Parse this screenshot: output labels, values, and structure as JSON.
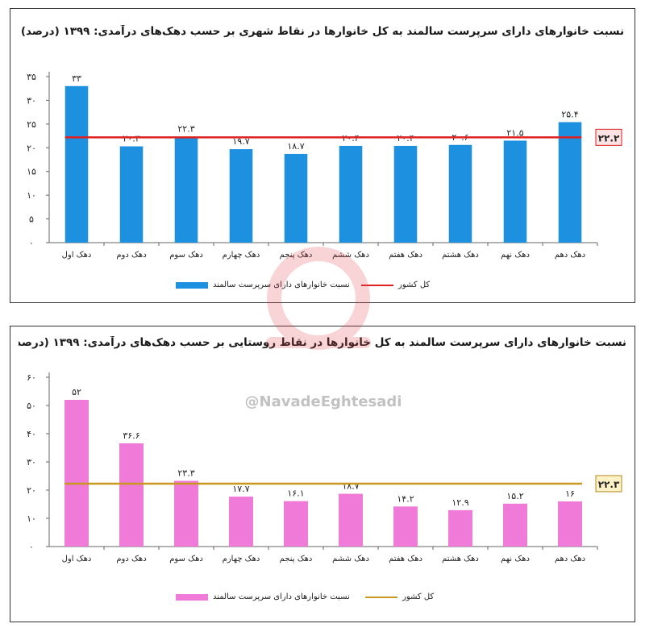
{
  "watermark": {
    "handle": "@NavadeEghtesadi"
  },
  "chart_data": [
    {
      "type": "bar",
      "title": "نسبت خانوارهای دارای سرپرست سالمند به کل خانوارها در نقاط شهری بر حسب دهک‌های درآمدی: ۱۳۹۹ (درصد)",
      "categories": [
        "دهک اول",
        "دهک دوم",
        "دهک سوم",
        "دهک چهارم",
        "دهک پنجم",
        "دهک ششم",
        "دهک هفتم",
        "دهک هشتم",
        "دهک نهم",
        "دهک دهم"
      ],
      "series": [
        {
          "name": "نسبت خانوارهای دارای سرپرست سالمند",
          "values": [
            33,
            20.3,
            22.3,
            19.7,
            18.7,
            20.4,
            20.4,
            20.6,
            21.5,
            25.4
          ],
          "labels": [
            "۳۳",
            "۲۰.۳",
            "۲۲.۳",
            "۱۹.۷",
            "۱۸.۷",
            "۲۰.۴",
            "۲۰.۴",
            "۲۰.۶",
            "۲۱.۵",
            "۲۵.۴"
          ],
          "color": "#1e90e0"
        }
      ],
      "reference_line": {
        "name": "کل کشور",
        "value": 22.2,
        "label": "۲۲.۲",
        "color": "#e02020",
        "label_bg": "#fde3e3",
        "label_border": "#e02020"
      },
      "ylim": [
        0,
        35
      ],
      "yticks": [
        "۰",
        "۵",
        "۱۰",
        "۱۵",
        "۲۰",
        "۲۵",
        "۳۰",
        "۳۵"
      ],
      "ytick_values": [
        0,
        5,
        10,
        15,
        20,
        25,
        30,
        35
      ],
      "grid": false,
      "legend": "bottom"
    },
    {
      "type": "bar",
      "title": "نسبت خانوارهای دارای سرپرست سالمند به کل خانوارها در نقاط روستایی بر حسب دهک‌های درآمدی: ۱۳۹۹ (درصد)",
      "categories": [
        "دهک اول",
        "دهک دوم",
        "دهک سوم",
        "دهک چهارم",
        "دهک پنجم",
        "دهک ششم",
        "دهک هفتم",
        "دهک هشتم",
        "دهک نهم",
        "دهک دهم"
      ],
      "series": [
        {
          "name": "نسبت خانوارهای دارای سرپرست سالمند",
          "values": [
            52,
            36.6,
            23.3,
            17.7,
            16.1,
            18.7,
            14.2,
            12.9,
            15.2,
            16
          ],
          "labels": [
            "۵۲",
            "۳۶.۶",
            "۲۳.۳",
            "۱۷.۷",
            "۱۶.۱",
            "۱۸.۷",
            "۱۴.۲",
            "۱۲.۹",
            "۱۵.۲",
            "۱۶"
          ],
          "color": "#f07ad8"
        }
      ],
      "reference_line": {
        "name": "کل کشور",
        "value": 22.3,
        "label": "۲۲.۳",
        "color": "#c9961e",
        "label_bg": "#fdf1c6",
        "label_border": "#b38a1e"
      },
      "ylim": [
        0,
        60
      ],
      "yticks": [
        "۰",
        "۱۰",
        "۲۰",
        "۳۰",
        "۴۰",
        "۵۰",
        "۶۰"
      ],
      "ytick_values": [
        0,
        10,
        20,
        30,
        40,
        50,
        60
      ],
      "grid": false,
      "legend": "bottom"
    }
  ]
}
